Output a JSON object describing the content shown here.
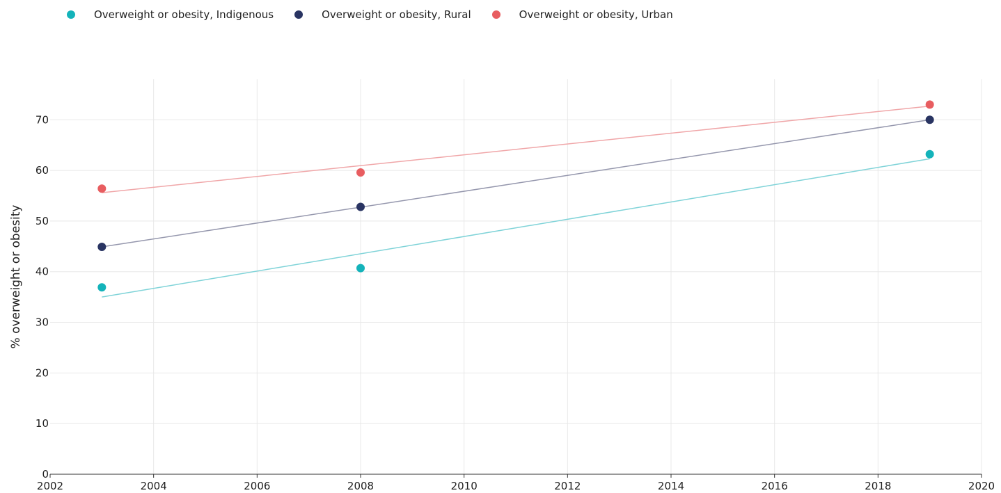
{
  "legend": {
    "items": [
      {
        "label": "Overweight or obesity, Indigenous",
        "color": "#14b3ba"
      },
      {
        "label": "Overweight or obesity, Rural",
        "color": "#293462"
      },
      {
        "label": "Overweight or obesity, Urban",
        "color": "#e85d60"
      }
    ]
  },
  "chart_data": {
    "type": "scatter",
    "ylabel": "% overweight or obesity",
    "xlabel": "",
    "xlim": [
      2002,
      2020
    ],
    "ylim": [
      0,
      78
    ],
    "x_ticks": [
      2002,
      2004,
      2006,
      2008,
      2010,
      2012,
      2014,
      2016,
      2018,
      2020
    ],
    "y_ticks": [
      0,
      10,
      20,
      30,
      40,
      50,
      60,
      70
    ],
    "grid": true,
    "legend_position": "top-left",
    "trendlines": true,
    "series": [
      {
        "name": "Overweight or obesity, Indigenous",
        "color": "#14b3ba",
        "trend_color": "#7fd3d8",
        "x": [
          2003,
          2008,
          2019
        ],
        "y": [
          36.9,
          40.7,
          63.2
        ],
        "trend": {
          "x": [
            2003,
            2019
          ],
          "y": [
            35.0,
            62.3
          ]
        }
      },
      {
        "name": "Overweight or obesity, Rural",
        "color": "#293462",
        "trend_color": "#9597ad",
        "x": [
          2003,
          2008,
          2019
        ],
        "y": [
          44.9,
          52.8,
          70.0
        ],
        "trend": {
          "x": [
            2003,
            2019
          ],
          "y": [
            44.9,
            70.0
          ]
        }
      },
      {
        "name": "Overweight or obesity, Urban",
        "color": "#e85d60",
        "trend_color": "#f0a6a8",
        "x": [
          2003,
          2008,
          2019
        ],
        "y": [
          56.4,
          59.6,
          73.0
        ],
        "trend": {
          "x": [
            2003,
            2019
          ],
          "y": [
            55.6,
            72.7
          ]
        }
      }
    ]
  }
}
